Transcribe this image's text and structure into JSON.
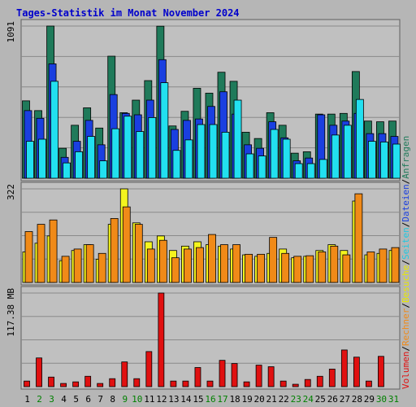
{
  "chart_data": {
    "type": "bar",
    "title": "Tages-Statistik im Monat November 2024",
    "categories": [
      "1",
      "2",
      "3",
      "4",
      "5",
      "6",
      "7",
      "8",
      "9",
      "10",
      "11",
      "12",
      "13",
      "14",
      "15",
      "16",
      "17",
      "18",
      "19",
      "20",
      "21",
      "22",
      "23",
      "24",
      "25",
      "26",
      "27",
      "28",
      "29",
      "30",
      "31"
    ],
    "weekend_days": [
      "2",
      "3",
      "9",
      "10",
      "16",
      "17",
      "23",
      "24",
      "30",
      "31"
    ],
    "colors": {
      "weekday_label": "#000000",
      "weekend_label": "#008000",
      "anfragen": "#1f7a5a",
      "dateien": "#1a3fe0",
      "seiten": "#22e0f0",
      "besuche": "#f4f41e",
      "rechner": "#f08a18",
      "volumen": "#e01010",
      "title": "#0000cc",
      "plot_bg": "#c0c0c0",
      "page_bg": "#b6b6b6"
    },
    "panels": [
      {
        "id": "requests",
        "ylabel": "1091",
        "ymax": 1091,
        "series": [
          {
            "name": "Anfragen",
            "values": [
              555,
              485,
              1091,
              215,
              380,
              505,
              360,
              875,
              470,
              560,
              700,
              1090,
              375,
              480,
              645,
              610,
              760,
              695,
              330,
              285,
              470,
              380,
              180,
              190,
              460,
              460,
              465,
              765,
              410,
              405,
              410
            ]
          },
          {
            "name": "Dateien",
            "values": [
              485,
              430,
              820,
              150,
              265,
              415,
              240,
              600,
              465,
              455,
              560,
              850,
              350,
              415,
              425,
              515,
              620,
              460,
              240,
              215,
              405,
              290,
              125,
              145,
              455,
              380,
              410,
              465,
              320,
              320,
              300
            ]
          },
          {
            "name": "Seiten",
            "values": [
              265,
              280,
              695,
              110,
              190,
              300,
              125,
              355,
              445,
              335,
              435,
              685,
              200,
              275,
              385,
              385,
              330,
              560,
              175,
              160,
              350,
              280,
              105,
              105,
              135,
              310,
              380,
              565,
              265,
              260,
              245
            ]
          }
        ]
      },
      {
        "id": "visits",
        "ylabel": "322",
        "ymax": 322,
        "series": [
          {
            "name": "Besuche",
            "values": [
              105,
              135,
              160,
              75,
              110,
              130,
              80,
              200,
              322,
              205,
              140,
              160,
              110,
              125,
              140,
              130,
              125,
              115,
              95,
              90,
              100,
              115,
              85,
              90,
              110,
              130,
              110,
              280,
              95,
              100,
              110
            ]
          },
          {
            "name": "Rechner",
            "values": [
              175,
              200,
              215,
              90,
              115,
              130,
              100,
              220,
              260,
              200,
              115,
              145,
              85,
              115,
              120,
              165,
              130,
              130,
              97,
              97,
              155,
              100,
              90,
              92,
              105,
              125,
              95,
              305,
              105,
              115,
              120
            ]
          }
        ]
      },
      {
        "id": "volume",
        "ylabel": "117.38 MB",
        "ymax": 117.38,
        "series": [
          {
            "name": "Volumen",
            "values": [
              7,
              36,
              12,
              4,
              6,
              13,
              4,
              10,
              31,
              10,
              44,
              117.38,
              7,
              7,
              24,
              7,
              33,
              29,
              6,
              27,
              25,
              7,
              3,
              9,
              13,
              22,
              46,
              37,
              7,
              38,
              0
            ]
          }
        ]
      }
    ],
    "legend_right": [
      {
        "label": "Volumen",
        "color": "#e01010"
      },
      {
        "label": "/",
        "color": "#000000"
      },
      {
        "label": "Rechner",
        "color": "#f08a18"
      },
      {
        "label": "/",
        "color": "#000000"
      },
      {
        "label": "Besuche",
        "color": "#e8e800"
      },
      {
        "label": "/",
        "color": "#000000"
      },
      {
        "label": "Seiten",
        "color": "#22c8e0"
      },
      {
        "label": "/",
        "color": "#000000"
      },
      {
        "label": "Dateien",
        "color": "#1a3fe0"
      },
      {
        "label": "/",
        "color": "#000000"
      },
      {
        "label": "Anfragen",
        "color": "#1f7a5a"
      }
    ]
  }
}
